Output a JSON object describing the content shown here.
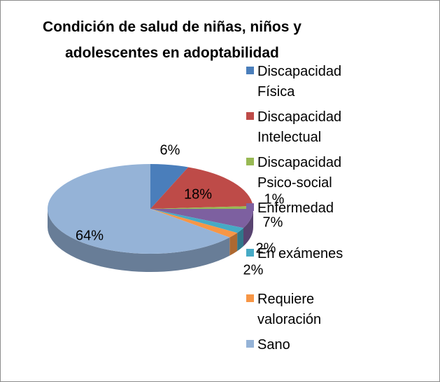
{
  "chart_data": {
    "type": "pie3d",
    "title": "Condición de salud de niñas, niños y adolescentes en adoptabilidad",
    "categories": [
      "Discapacidad Física",
      "Discapacidad Intelectual",
      "Discapacidad Psico-social",
      "Enfermedad",
      "En exámenes",
      "Requiere valoración",
      "Sano"
    ],
    "values": [
      6,
      18,
      1,
      7,
      2,
      2,
      64
    ],
    "value_labels": [
      "6%",
      "18%",
      "1%",
      "7%",
      "2%",
      "2%",
      "64%"
    ],
    "colors": [
      "#4a7ebb",
      "#be4b48",
      "#98b954",
      "#7d60a0",
      "#46aac5",
      "#f79646",
      "#95b3d7"
    ],
    "legend": "right"
  }
}
